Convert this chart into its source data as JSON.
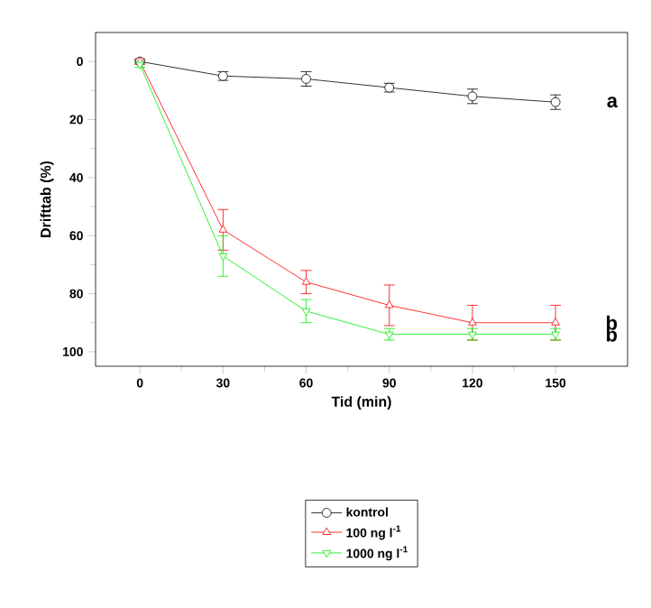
{
  "chart_data": {
    "type": "line",
    "xlabel": "Tid (min)",
    "ylabel": "Drifttab (%)",
    "x": [
      0,
      30,
      60,
      90,
      120,
      150
    ],
    "series": [
      {
        "name": "kontrol",
        "color": "#000000",
        "marker": "circle",
        "values": [
          0,
          5,
          6,
          9,
          12,
          14
        ],
        "errors": [
          0.5,
          1.5,
          2.5,
          1.5,
          2.5,
          2.5
        ]
      },
      {
        "name": "100 ng l$^{-1}$",
        "color": "#ff0000",
        "marker": "triangle",
        "values": [
          0,
          58,
          76,
          84,
          90,
          90
        ],
        "errors": [
          1,
          7,
          4,
          7,
          6,
          6
        ]
      },
      {
        "name": "1000 ng l$^{-1}$",
        "color": "#00ee00",
        "marker": "triangle down",
        "values": [
          1,
          67,
          86,
          94,
          94,
          94
        ],
        "errors": [
          1,
          7,
          4,
          2,
          2,
          2
        ]
      }
    ],
    "xlim": [
      -16,
      176
    ],
    "ylim": [
      105,
      -10
    ],
    "xticks": [
      0,
      30,
      60,
      90,
      120,
      150
    ],
    "yticks": [
      0,
      20,
      40,
      60,
      80,
      100
    ],
    "legend": "bottom",
    "line_style": "solid",
    "annotations": [
      "a",
      "b",
      "b"
    ]
  }
}
